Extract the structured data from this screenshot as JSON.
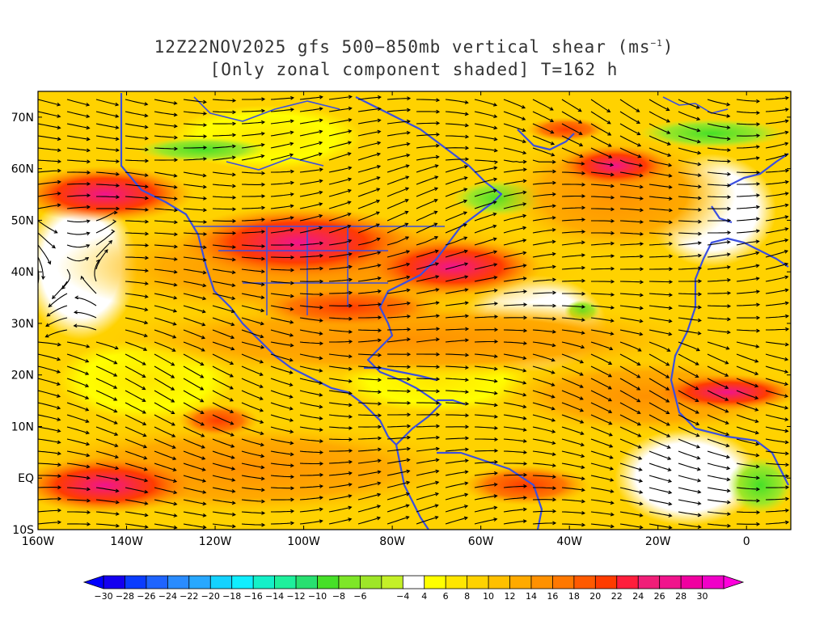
{
  "title": {
    "line1_prefix": "12Z22NOV2025 gfs 500−850mb vertical shear (ms",
    "line1_sup": "−1",
    "line1_suffix": ")",
    "line2": "[Only zonal component shaded] T=162 h"
  },
  "map": {
    "lon_range": [
      -160,
      10
    ],
    "lat_range": [
      -10,
      75
    ],
    "lat_ticks": [
      {
        "value": 70,
        "label": "70N"
      },
      {
        "value": 60,
        "label": "60N"
      },
      {
        "value": 50,
        "label": "50N"
      },
      {
        "value": 40,
        "label": "40N"
      },
      {
        "value": 30,
        "label": "30N"
      },
      {
        "value": 20,
        "label": "20N"
      },
      {
        "value": 10,
        "label": "10N"
      },
      {
        "value": 0,
        "label": "EQ"
      },
      {
        "value": -10,
        "label": "10S"
      }
    ],
    "lon_ticks": [
      {
        "value": -160,
        "label": "160W"
      },
      {
        "value": -140,
        "label": "140W"
      },
      {
        "value": -120,
        "label": "120W"
      },
      {
        "value": -100,
        "label": "100W"
      },
      {
        "value": -80,
        "label": "80W"
      },
      {
        "value": -60,
        "label": "60W"
      },
      {
        "value": -40,
        "label": "40W"
      },
      {
        "value": -20,
        "label": "20W"
      },
      {
        "value": 0,
        "label": "0"
      }
    ],
    "coastline_color": "#3a4fe0",
    "streamline_color": "#000000"
  },
  "colorbar": {
    "labels": [
      "−30",
      "−28",
      "−26",
      "−24",
      "−22",
      "−20",
      "−18",
      "−16",
      "−14",
      "−12",
      "−10",
      "−8",
      "−6",
      "−4",
      "4",
      "6",
      "8",
      "10",
      "12",
      "14",
      "16",
      "18",
      "20",
      "22",
      "24",
      "26",
      "28",
      "30"
    ],
    "colors": [
      "#1400f0",
      "#0a3cff",
      "#1e64ff",
      "#2a8cff",
      "#28a8ff",
      "#14d2ff",
      "#10eeff",
      "#14f0c8",
      "#1ef09c",
      "#28e070",
      "#46e028",
      "#7ee628",
      "#9ee628",
      "#c4f028",
      "#ffffff",
      "#ffff00",
      "#ffe600",
      "#ffd200",
      "#ffc000",
      "#ffaa00",
      "#ff9100",
      "#ff7800",
      "#ff5a00",
      "#ff3c00",
      "#ff1e3c",
      "#f01e78",
      "#f0148c",
      "#f000a0",
      "#f000c8"
    ]
  }
}
